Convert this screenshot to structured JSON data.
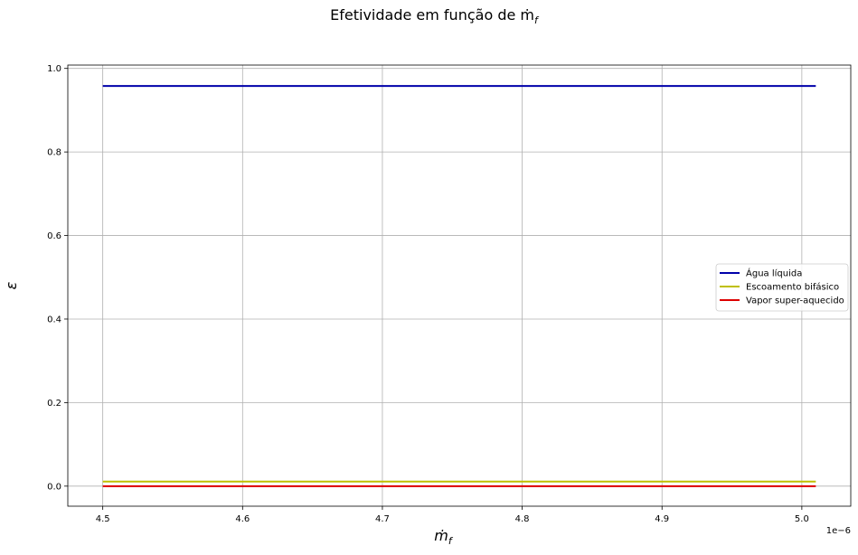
{
  "chart_data": {
    "type": "line",
    "title": "Efetividade em função de ṁ",
    "title_subscript": "f",
    "xlabel": "ṁ",
    "xlabel_subscript": "f",
    "ylabel": "ε",
    "x_offset_label": "1e−6",
    "x_scale": 1e-06,
    "xlim": [
      4.475,
      5.035
    ],
    "ylim": [
      -0.048,
      1.008
    ],
    "x_ticks": [
      4.5,
      4.6,
      4.7,
      4.8,
      4.9,
      5.0
    ],
    "x_tick_labels": [
      "4.5",
      "4.6",
      "4.7",
      "4.8",
      "4.9",
      "5.0"
    ],
    "y_ticks": [
      0.0,
      0.2,
      0.4,
      0.6,
      0.8,
      1.0
    ],
    "y_tick_labels": [
      "0.0",
      "0.2",
      "0.4",
      "0.6",
      "0.8",
      "1.0"
    ],
    "grid": true,
    "legend_position": "center-right",
    "series": [
      {
        "name": "Água líquida",
        "color": "#0000aa",
        "x": [
          4.5,
          5.01
        ],
        "y": [
          0.958,
          0.958
        ]
      },
      {
        "name": "Escoamento bifásico",
        "color": "#bfbf00",
        "x": [
          4.5,
          5.01
        ],
        "y": [
          0.011,
          0.011
        ]
      },
      {
        "name": "Vapor super-aquecido",
        "color": "#dd0000",
        "x": [
          4.5,
          5.01
        ],
        "y": [
          0.0,
          0.0
        ]
      }
    ]
  }
}
